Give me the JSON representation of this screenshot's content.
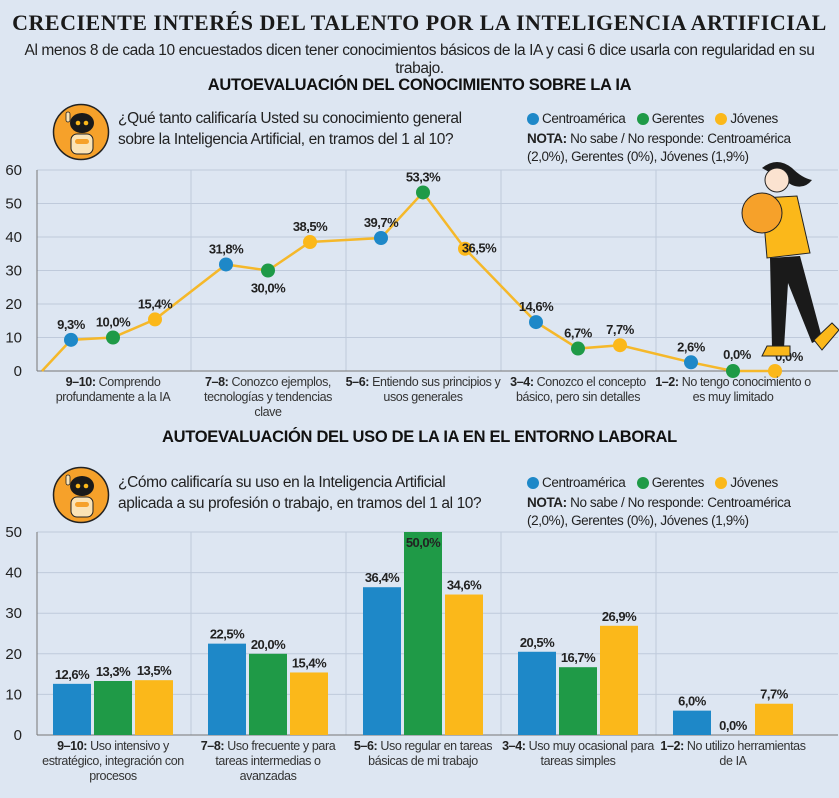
{
  "header": {
    "title": "CRECIENTE INTERÉS DEL TALENTO POR LA INTELIGENCIA ARTIFICIAL",
    "subtitle": "Al menos 8 de cada 10 encuestados dicen tener conocimientos básicos de la IA y casi 6 dice usarla con regularidad en su trabajo."
  },
  "colors": {
    "Centroamérica": "#1e88c8",
    "Gerentes": "#1f9a47",
    "Jóvenes": "#fbb81a",
    "background": "#dde6f2",
    "line": "#f5b82a"
  },
  "icons": [
    "robot-icon",
    "woman-holding-chat-bubble-illustration"
  ],
  "legend": {
    "items": [
      {
        "label": "Centroamérica",
        "color": "#1e88c8"
      },
      {
        "label": "Gerentes",
        "color": "#1f9a47"
      },
      {
        "label": "Jóvenes",
        "color": "#fbb81a"
      }
    ],
    "note_label": "NOTA:",
    "note_text": "No sabe / No responde: Centroamérica (2,0%), Gerentes (0%), Jóvenes (1,9%)"
  },
  "chart_data": [
    {
      "type": "line",
      "title": "AUTOEVALUACIÓN DEL CONOCIMIENTO SOBRE LA IA",
      "question": "¿Qué tanto calificaría Usted su conocimiento general sobre la Inteligencia Artificial, en tramos del 1 al 10?",
      "categories": [
        {
          "prefix": "9–10:",
          "text": "Comprendo profundamente a la IA"
        },
        {
          "prefix": "7–8:",
          "text": "Conozco ejemplos, tecnologías y tendencias clave"
        },
        {
          "prefix": "5–6:",
          "text": "Entiendo sus principios y usos generales"
        },
        {
          "prefix": "3–4:",
          "text": "Conozco el concepto básico, pero sin detalles"
        },
        {
          "prefix": "1–2:",
          "text": "No tengo conocimiento o es muy limitado"
        }
      ],
      "series": [
        {
          "name": "Centroamérica",
          "values": [
            9.3,
            31.8,
            39.7,
            14.6,
            2.6
          ],
          "labels": [
            "9,3%",
            "31,8%",
            "39,7%",
            "14,6%",
            "2,6%"
          ]
        },
        {
          "name": "Gerentes",
          "values": [
            10.0,
            30.0,
            53.3,
            6.7,
            0.0
          ],
          "labels": [
            "10,0%",
            "30,0%",
            "53,3%",
            "6,7%",
            "0,0%"
          ]
        },
        {
          "name": "Jóvenes",
          "values": [
            15.4,
            38.5,
            36.5,
            7.7,
            0.0
          ],
          "labels": [
            "15,4%",
            "38,5%",
            "36,5%",
            "7,7%",
            "0,0%"
          ]
        }
      ],
      "yticks": [
        0,
        10,
        20,
        30,
        40,
        50,
        60
      ],
      "ylim": [
        0,
        60
      ],
      "grid": true,
      "legend_placement": "top-right"
    },
    {
      "type": "bar",
      "title": "AUTOEVALUACIÓN DEL USO DE LA IA EN EL ENTORNO LABORAL",
      "question": "¿Cómo calificaría su uso en la Inteligencia Artificial aplicada a su profesión o trabajo, en tramos del 1 al 10?",
      "categories": [
        {
          "prefix": "9–10:",
          "text": "Uso intensivo y estratégico, integración con procesos"
        },
        {
          "prefix": "7–8:",
          "text": "Uso frecuente y para tareas intermedias o avanzadas"
        },
        {
          "prefix": "5–6:",
          "text": "Uso regular en tareas básicas de mi trabajo"
        },
        {
          "prefix": "3–4:",
          "text": "Uso muy ocasional para tareas simples"
        },
        {
          "prefix": "1–2:",
          "text": "No utilizo herramientas de IA"
        }
      ],
      "series": [
        {
          "name": "Centroamérica",
          "values": [
            12.6,
            22.5,
            36.4,
            20.5,
            6.0
          ],
          "labels": [
            "12,6%",
            "22,5%",
            "36,4%",
            "20,5%",
            "6,0%"
          ]
        },
        {
          "name": "Gerentes",
          "values": [
            13.3,
            20.0,
            50.0,
            16.7,
            0.0
          ],
          "labels": [
            "13,3%",
            "20,0%",
            "50,0%",
            "16,7%",
            "0,0%"
          ]
        },
        {
          "name": "Jóvenes",
          "values": [
            13.5,
            15.4,
            34.6,
            26.9,
            7.7
          ],
          "labels": [
            "13,5%",
            "15,4%",
            "34,6%",
            "26,9%",
            "7,7%"
          ]
        }
      ],
      "yticks": [
        0,
        10,
        20,
        30,
        40,
        50
      ],
      "ylim": [
        0,
        50
      ],
      "grid": true,
      "legend_placement": "top-right"
    }
  ]
}
